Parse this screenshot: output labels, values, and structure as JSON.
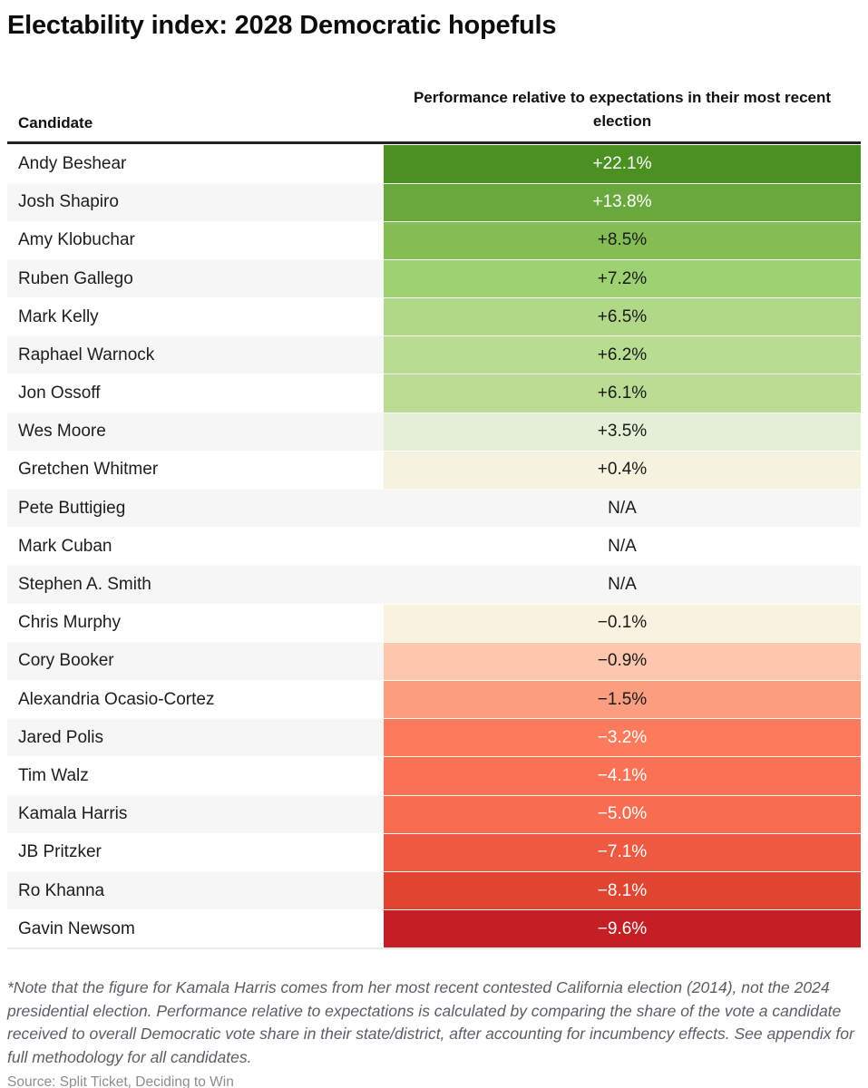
{
  "title": "Electability index: 2028 Democratic hopefuls",
  "footnote": "*Note that the figure for Kamala Harris comes from her most recent contested California election (2014), not the 2024 presidential election. Performance relative to expectations is calculated by comparing the share of the vote a candidate received to overall Democratic vote share in their state/district, after accounting for incumbency effects. See appendix for full methodology for all candidates.",
  "source": "Source: Split Ticket, Deciding to Win",
  "colors": {
    "header_border": "#212121",
    "row_stripe": "#f6f6f7",
    "positive_max": "#4b9121",
    "negative_max": "#c41f24"
  },
  "chart_data": {
    "type": "table",
    "title": "Electability index: 2028 Democratic hopefuls",
    "columns": [
      "Candidate",
      "Performance relative to expectations in their most recent election"
    ],
    "header_candidate": "Candidate",
    "header_performance": "Performance relative to expectations in their most recent election",
    "rows": [
      {
        "candidate": "Andy Beshear",
        "value": 22.1,
        "label": "+22.1%",
        "cell_color": "#4b9121",
        "text_color": "#ffffff"
      },
      {
        "candidate": "Josh Shapiro",
        "value": 13.8,
        "label": "+13.8%",
        "cell_color": "#69a83d",
        "text_color": "#ffffff"
      },
      {
        "candidate": "Amy Klobuchar",
        "value": 8.5,
        "label": "+8.5%",
        "cell_color": "#85bd55",
        "text_color": "#1a1a1a"
      },
      {
        "candidate": "Ruben Gallego",
        "value": 7.2,
        "label": "+7.2%",
        "cell_color": "#9ed171",
        "text_color": "#1a1a1a"
      },
      {
        "candidate": "Mark Kelly",
        "value": 6.5,
        "label": "+6.5%",
        "cell_color": "#b1d887",
        "text_color": "#1a1a1a"
      },
      {
        "candidate": "Raphael Warnock",
        "value": 6.2,
        "label": "+6.2%",
        "cell_color": "#b8dc90",
        "text_color": "#1a1a1a"
      },
      {
        "candidate": "Jon Ossoff",
        "value": 6.1,
        "label": "+6.1%",
        "cell_color": "#badd93",
        "text_color": "#1a1a1a"
      },
      {
        "candidate": "Wes Moore",
        "value": 3.5,
        "label": "+3.5%",
        "cell_color": "#e4efd5",
        "text_color": "#1a1a1a"
      },
      {
        "candidate": "Gretchen Whitmer",
        "value": 0.4,
        "label": "+0.4%",
        "cell_color": "#f5f3de",
        "text_color": "#1a1a1a"
      },
      {
        "candidate": "Pete Buttigieg",
        "value": null,
        "label": "N/A",
        "cell_color": null,
        "text_color": "#1a1a1a"
      },
      {
        "candidate": "Mark Cuban",
        "value": null,
        "label": "N/A",
        "cell_color": null,
        "text_color": "#1a1a1a"
      },
      {
        "candidate": "Stephen A. Smith",
        "value": null,
        "label": "N/A",
        "cell_color": null,
        "text_color": "#1a1a1a"
      },
      {
        "candidate": "Chris Murphy",
        "value": -0.1,
        "label": "−0.1%",
        "cell_color": "#f9f2df",
        "text_color": "#1a1a1a"
      },
      {
        "candidate": "Cory Booker",
        "value": -0.9,
        "label": "−0.9%",
        "cell_color": "#fdc6ad",
        "text_color": "#1a1a1a"
      },
      {
        "candidate": "Alexandria Ocasio-Cortez",
        "value": -1.5,
        "label": "−1.5%",
        "cell_color": "#fb9e80",
        "text_color": "#1a1a1a"
      },
      {
        "candidate": "Jared Polis",
        "value": -3.2,
        "label": "−3.2%",
        "cell_color": "#fb7b5c",
        "text_color": "#ffffff"
      },
      {
        "candidate": "Tim Walz",
        "value": -4.1,
        "label": "−4.1%",
        "cell_color": "#fa7256",
        "text_color": "#ffffff"
      },
      {
        "candidate": "Kamala Harris",
        "value": -5.0,
        "label": "−5.0%",
        "cell_color": "#f86c4f",
        "text_color": "#ffffff"
      },
      {
        "candidate": "JB Pritzker",
        "value": -7.1,
        "label": "−7.1%",
        "cell_color": "#ee5941",
        "text_color": "#ffffff"
      },
      {
        "candidate": "Ro Khanna",
        "value": -8.1,
        "label": "−8.1%",
        "cell_color": "#df4530",
        "text_color": "#ffffff"
      },
      {
        "candidate": "Gavin Newsom",
        "value": -9.6,
        "label": "−9.6%",
        "cell_color": "#c41f24",
        "text_color": "#ffffff"
      }
    ]
  }
}
